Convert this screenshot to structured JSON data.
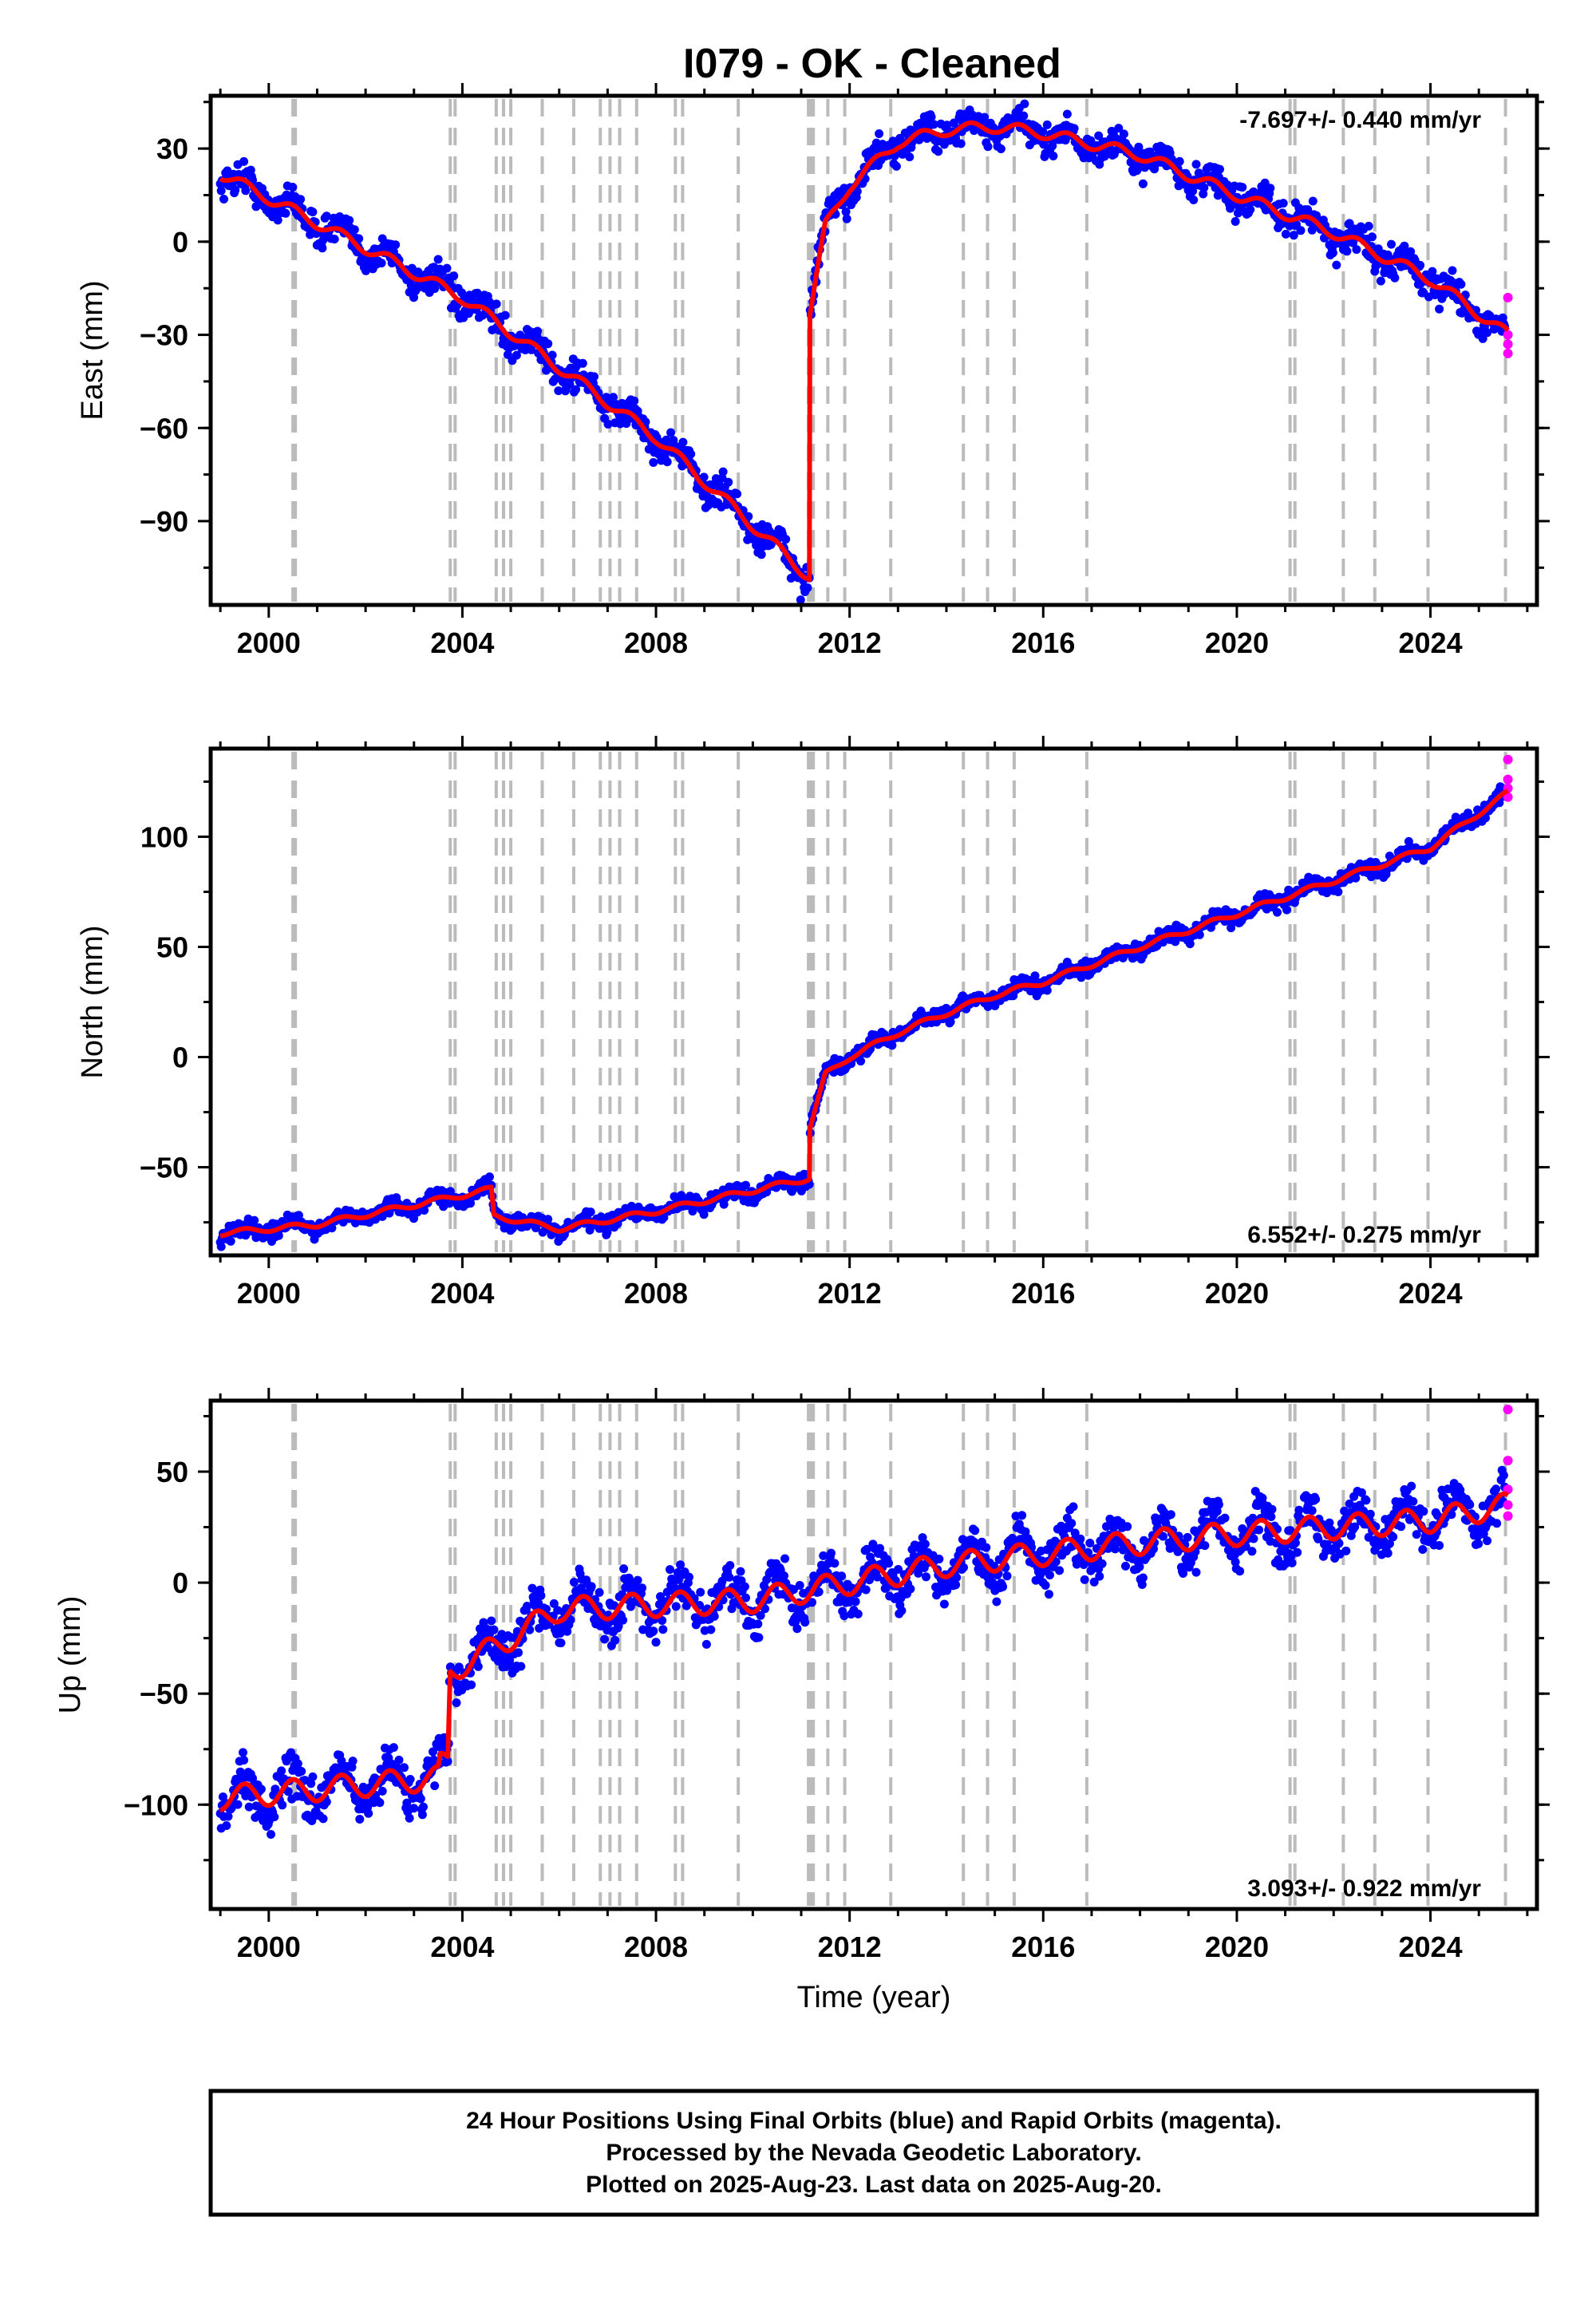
{
  "title": "I079  - OK - Cleaned",
  "footer": {
    "line1": "24 Hour Positions Using Final Orbits (blue) and Rapid Orbits (magenta).",
    "line2": "Processed by the Nevada Geodetic Laboratory.",
    "line3": "Plotted on 2025-Aug-23. Last data on 2025-Aug-20."
  },
  "colors": {
    "final": "#0000ff",
    "rapid": "#ff00ff",
    "model": "#ff0000",
    "event": "#bbbbbb"
  },
  "chart_data": [
    {
      "type": "scatter",
      "ylabel": "East (mm)",
      "xlabel": "",
      "rate_label": "-7.697+/- 0.440 mm/yr",
      "xlim": [
        1998.8,
        2026.2
      ],
      "ylim": [
        -117,
        47
      ],
      "yticks": [
        30,
        0,
        -30,
        -60,
        -90
      ],
      "ytick_labels": [
        "30",
        "0",
        "−30",
        "−60",
        "−90"
      ],
      "xticks": [
        2000,
        2004,
        2008,
        2012,
        2016,
        2020,
        2024
      ],
      "xtick_labels": [
        "2000",
        "2004",
        "2008",
        "2012",
        "2016",
        "2020",
        "2024"
      ],
      "event_lines": [
        2000.5,
        2000.55,
        2003.75,
        2003.85,
        2004.7,
        2004.85,
        2005.0,
        2005.65,
        2006.3,
        2006.85,
        2007.05,
        2007.25,
        2007.6,
        2008.4,
        2008.55,
        2009.7,
        2011.15,
        2011.2,
        2011.25,
        2011.55,
        2011.9,
        2012.85,
        2014.35,
        2014.85,
        2015.4,
        2016.9,
        2021.1,
        2021.2,
        2022.2,
        2022.85,
        2023.95,
        2025.55
      ],
      "model_keypoints": [
        [
          1999.0,
          22
        ],
        [
          2004.0,
          -18
        ],
        [
          2008.0,
          -63
        ],
        [
          2011.17,
          -108
        ],
        [
          2011.18,
          -23
        ],
        [
          2011.5,
          5
        ],
        [
          2012.0,
          18
        ],
        [
          2013.0,
          32
        ],
        [
          2014.0,
          36
        ],
        [
          2015.0,
          37
        ],
        [
          2016.0,
          35
        ],
        [
          2018.0,
          28
        ],
        [
          2020.0,
          15
        ],
        [
          2022.0,
          3
        ],
        [
          2024.0,
          -12
        ],
        [
          2025.6,
          -30
        ]
      ],
      "series": [
        {
          "name": "Final Orbits",
          "color": "#0000ff",
          "x_range": [
            1999.0,
            2025.55
          ],
          "scatter_mm": 3.5
        },
        {
          "name": "Rapid Orbits",
          "color": "#ff00ff",
          "x": [
            2025.6,
            2025.6,
            2025.6,
            2025.6
          ],
          "y": [
            -18,
            -30,
            -33,
            -36
          ]
        }
      ]
    },
    {
      "type": "scatter",
      "ylabel": "North (mm)",
      "xlabel": "",
      "rate_label": "6.552+/- 0.275 mm/yr",
      "xlim": [
        1998.8,
        2026.2
      ],
      "ylim": [
        -90,
        140
      ],
      "yticks": [
        100,
        50,
        0,
        -50
      ],
      "ytick_labels": [
        "100",
        "50",
        "0",
        "−50"
      ],
      "xticks": [
        2000,
        2004,
        2008,
        2012,
        2016,
        2020,
        2024
      ],
      "xtick_labels": [
        "2000",
        "2004",
        "2008",
        "2012",
        "2016",
        "2020",
        "2024"
      ],
      "event_lines": [
        2000.5,
        2000.55,
        2003.75,
        2003.85,
        2004.7,
        2004.85,
        2005.0,
        2005.65,
        2006.3,
        2006.85,
        2007.05,
        2007.25,
        2007.6,
        2008.4,
        2008.55,
        2009.7,
        2011.15,
        2011.2,
        2011.25,
        2011.55,
        2011.9,
        2012.85,
        2014.35,
        2014.85,
        2015.4,
        2016.9,
        2021.1,
        2021.2,
        2022.2,
        2022.85,
        2023.95,
        2025.55
      ],
      "model_keypoints": [
        [
          1999.0,
          -80
        ],
        [
          2001.0,
          -76
        ],
        [
          2004.6,
          -60
        ],
        [
          2004.65,
          -72
        ],
        [
          2006.0,
          -78
        ],
        [
          2008.0,
          -70
        ],
        [
          2011.17,
          -55
        ],
        [
          2011.18,
          -32
        ],
        [
          2011.5,
          -8
        ],
        [
          2012.0,
          0
        ],
        [
          2013.0,
          11
        ],
        [
          2014.0,
          20
        ],
        [
          2015.0,
          28
        ],
        [
          2016.0,
          34
        ],
        [
          2018.0,
          50
        ],
        [
          2020.0,
          65
        ],
        [
          2022.0,
          80
        ],
        [
          2024.0,
          95
        ],
        [
          2025.6,
          120
        ]
      ],
      "series": [
        {
          "name": "Final Orbits",
          "color": "#0000ff",
          "x_range": [
            1999.0,
            2025.55
          ],
          "scatter_mm": 2.5
        },
        {
          "name": "Rapid Orbits",
          "color": "#ff00ff",
          "x": [
            2025.6,
            2025.6,
            2025.6,
            2025.6
          ],
          "y": [
            135,
            126,
            122,
            118
          ]
        }
      ]
    },
    {
      "type": "scatter",
      "ylabel": "Up (mm)",
      "xlabel": "Time (year)",
      "rate_label": "3.093+/- 0.922 mm/yr",
      "xlim": [
        1998.8,
        2026.2
      ],
      "ylim": [
        -147,
        82
      ],
      "yticks": [
        50,
        0,
        -50,
        -100
      ],
      "ytick_labels": [
        "50",
        "0",
        "−50",
        "−100"
      ],
      "xticks": [
        2000,
        2004,
        2008,
        2012,
        2016,
        2020,
        2024
      ],
      "xtick_labels": [
        "2000",
        "2004",
        "2008",
        "2012",
        "2016",
        "2020",
        "2024"
      ],
      "event_lines": [
        2000.5,
        2000.55,
        2003.75,
        2003.85,
        2004.7,
        2004.85,
        2005.0,
        2005.65,
        2006.3,
        2006.85,
        2007.05,
        2007.25,
        2007.6,
        2008.4,
        2008.55,
        2009.7,
        2011.15,
        2011.2,
        2011.25,
        2011.55,
        2011.9,
        2012.85,
        2014.35,
        2014.85,
        2015.4,
        2016.9,
        2021.1,
        2021.2,
        2022.2,
        2022.85,
        2023.95,
        2025.55
      ],
      "model_keypoints": [
        [
          1999.0,
          -97
        ],
        [
          2003.5,
          -88
        ],
        [
          2003.55,
          -82
        ],
        [
          2003.7,
          -80
        ],
        [
          2003.75,
          -40
        ],
        [
          2005.0,
          -25
        ],
        [
          2006.0,
          -12
        ],
        [
          2008.0,
          -10
        ],
        [
          2010.0,
          -8
        ],
        [
          2012.0,
          0
        ],
        [
          2014.0,
          8
        ],
        [
          2016.0,
          13
        ],
        [
          2018.0,
          18
        ],
        [
          2020.0,
          22
        ],
        [
          2022.0,
          25
        ],
        [
          2024.0,
          28
        ],
        [
          2025.6,
          35
        ]
      ],
      "series": [
        {
          "name": "Final Orbits",
          "color": "#0000ff",
          "x_range": [
            1999.0,
            2025.55
          ],
          "scatter_mm": 7
        },
        {
          "name": "Rapid Orbits",
          "color": "#ff00ff",
          "x": [
            2025.6,
            2025.6,
            2025.6,
            2025.6,
            2025.6
          ],
          "y": [
            78,
            55,
            42,
            35,
            30
          ]
        }
      ]
    }
  ]
}
